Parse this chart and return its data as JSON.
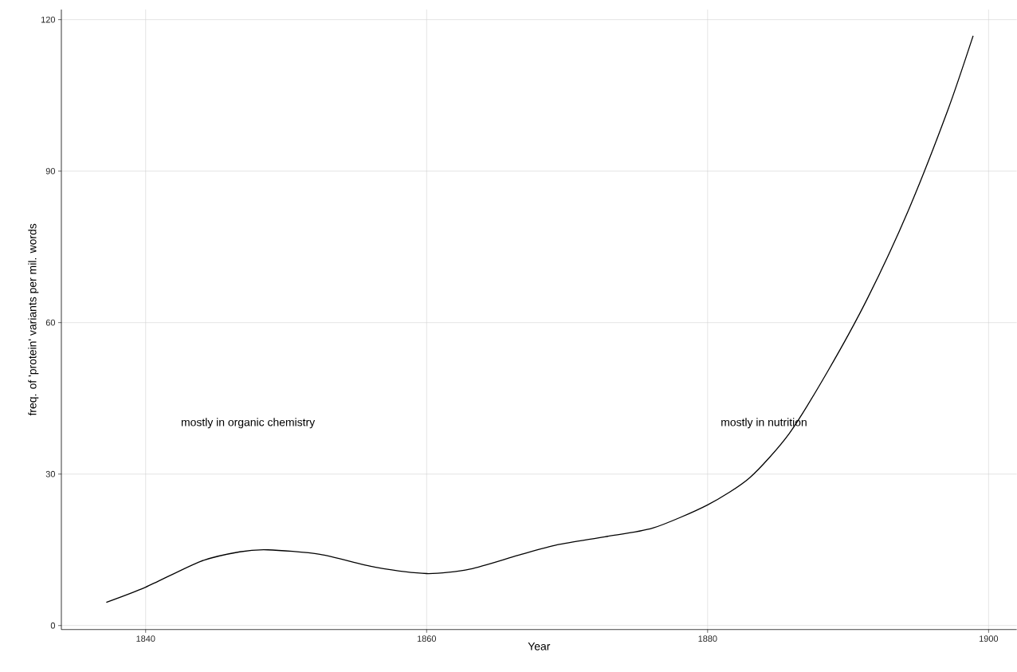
{
  "chart_data": {
    "type": "line",
    "xlabel": "Year",
    "ylabel": "freq. of 'protein' variants per mil. words",
    "x": [
      1837.2,
      1840,
      1843.9,
      1846.7,
      1848.7,
      1852.4,
      1856.3,
      1860,
      1863.1,
      1866.5,
      1869.3,
      1872.7,
      1876.1,
      1880,
      1883,
      1885.8,
      1888.6,
      1891.4,
      1894.3,
      1897.1,
      1898.9
    ],
    "series": [
      {
        "color": "#000000",
        "values": [
          4.6,
          7.6,
          12.7,
          14.6,
          15.0,
          14.1,
          11.6,
          10.3,
          11.2,
          13.9,
          16.0,
          17.6,
          19.3,
          23.9,
          29.3,
          38.0,
          50.6,
          64.9,
          82.3,
          102.1,
          116.8
        ]
      }
    ],
    "xlim": [
      1834,
      1902
    ],
    "ylim": [
      -0.8,
      122
    ],
    "xticks": [
      1840,
      1860,
      1880,
      1900
    ],
    "yticks": [
      0,
      30,
      60,
      90,
      120
    ],
    "grid": true,
    "marker": "none",
    "line_style": "solid",
    "annotations": [
      "mostly in organic chemistry",
      "mostly in nutrition"
    ]
  }
}
